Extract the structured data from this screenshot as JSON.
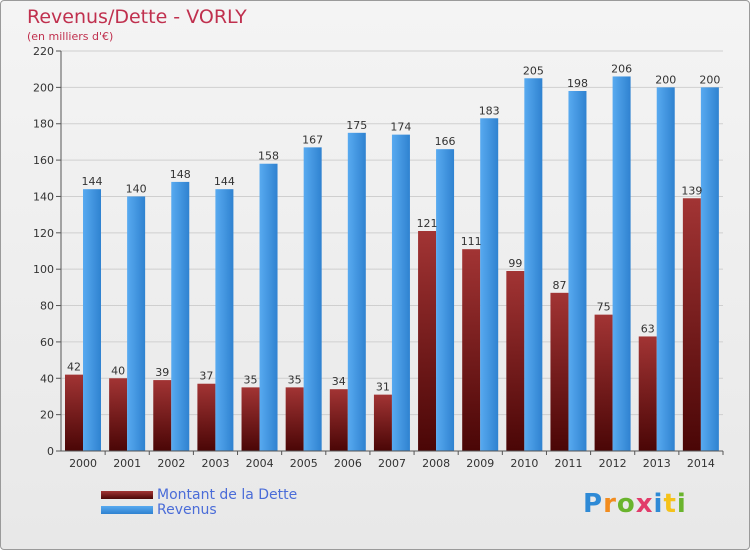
{
  "title": "Revenus/Dette - VORLY",
  "subtitle": "(en milliers d'€)",
  "logo": {
    "letters": [
      "P",
      "r",
      "o",
      "x",
      "i",
      "t",
      "i"
    ],
    "colors": [
      "#2e8ad6",
      "#f28c1e",
      "#6ab42d",
      "#e23c6a",
      "#2e8ad6",
      "#f5c21a",
      "#6ab42d"
    ]
  },
  "legend": [
    {
      "label": "Montant de la Dette",
      "color": "#7a1a1a"
    },
    {
      "label": "Revenus",
      "color": "#3b8fdd"
    }
  ],
  "chart_data": {
    "type": "bar",
    "title": "Revenus/Dette - VORLY",
    "subtitle": "(en milliers d'€)",
    "categories": [
      "2000",
      "2001",
      "2002",
      "2003",
      "2004",
      "2005",
      "2006",
      "2007",
      "2008",
      "2009",
      "2010",
      "2011",
      "2012",
      "2013",
      "2014"
    ],
    "series": [
      {
        "name": "Montant de la Dette",
        "color": "#7a1a1a",
        "values": [
          42,
          40,
          39,
          37,
          35,
          35,
          34,
          31,
          121,
          111,
          99,
          87,
          75,
          63,
          139
        ]
      },
      {
        "name": "Revenus",
        "color": "#3b8fdd",
        "values": [
          144,
          140,
          148,
          144,
          158,
          167,
          175,
          174,
          166,
          183,
          205,
          198,
          206,
          200,
          200
        ]
      }
    ],
    "yticks": [
      0,
      20,
      40,
      60,
      80,
      100,
      120,
      140,
      160,
      180,
      200,
      220
    ],
    "ylim": [
      0,
      220
    ],
    "grid": true,
    "legend_position": "bottom-left"
  }
}
